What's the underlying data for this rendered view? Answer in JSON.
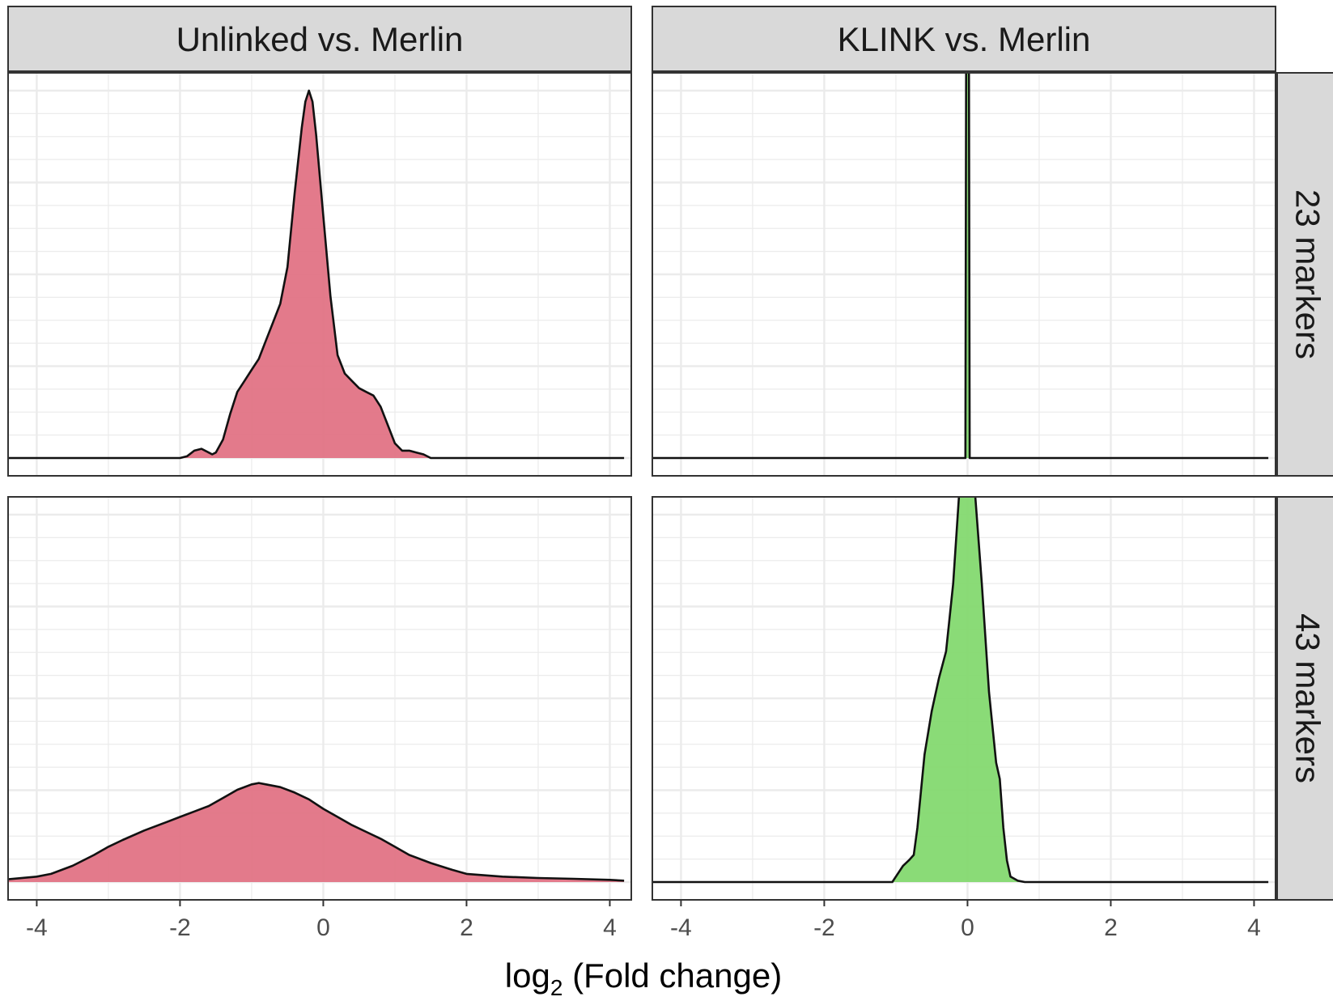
{
  "chart_data": {
    "type": "area",
    "subtype": "density",
    "facet_columns": [
      "Unlinked vs. Merlin",
      "KLINK vs. Merlin"
    ],
    "facet_rows": [
      "23 markers",
      "43 markers"
    ],
    "xlabel": "log2 (Fold change)",
    "xlabel_base": "log",
    "xlabel_sub": "2",
    "xlabel_rest": " (Fold change)",
    "xlim": [
      -4.4,
      4.3
    ],
    "x_ticks": [
      -4,
      -2,
      0,
      2,
      4
    ],
    "x_tick_labels": [
      "-4",
      "-2",
      "0",
      "2",
      "4"
    ],
    "y_labels_shown": false,
    "grid": true,
    "colors": {
      "Unlinked vs. Merlin": "#e27385",
      "KLINK vs. Merlin": "#84d970",
      "strip_bg": "#d9d9d9",
      "grid": "#ebebeb",
      "frame": "#333333"
    },
    "panels": [
      {
        "column": "Unlinked vs. Merlin",
        "row": "23 markers",
        "color": "#e27385",
        "x": [
          -4.4,
          -2.0,
          -1.9,
          -1.8,
          -1.7,
          -1.6,
          -1.55,
          -1.5,
          -1.4,
          -1.3,
          -1.2,
          -1.1,
          -1.0,
          -0.9,
          -0.8,
          -0.7,
          -0.6,
          -0.5,
          -0.4,
          -0.3,
          -0.25,
          -0.2,
          -0.15,
          -0.1,
          0.0,
          0.1,
          0.2,
          0.3,
          0.4,
          0.5,
          0.6,
          0.7,
          0.8,
          0.9,
          1.0,
          1.1,
          1.2,
          1.3,
          1.4,
          1.5,
          1.6,
          1.7,
          1.8,
          2.0,
          4.2
        ],
        "y": [
          0,
          0,
          0.005,
          0.02,
          0.025,
          0.015,
          0.01,
          0.015,
          0.05,
          0.12,
          0.18,
          0.21,
          0.24,
          0.27,
          0.32,
          0.37,
          0.42,
          0.52,
          0.72,
          0.9,
          0.97,
          1.0,
          0.97,
          0.88,
          0.66,
          0.44,
          0.28,
          0.23,
          0.21,
          0.19,
          0.18,
          0.17,
          0.14,
          0.09,
          0.04,
          0.02,
          0.02,
          0.015,
          0.01,
          0.0,
          0.0,
          0.0,
          0.0,
          0.0,
          0.0
        ]
      },
      {
        "column": "KLINK vs. Merlin",
        "row": "23 markers",
        "color": "#84d970",
        "x": [
          -4.4,
          -0.03,
          -0.02,
          0.02,
          0.03,
          4.2
        ],
        "y": [
          0,
          0,
          1.05,
          1.05,
          0,
          0
        ]
      },
      {
        "column": "Unlinked vs. Merlin",
        "row": "43 markers",
        "color": "#e27385",
        "x": [
          -4.4,
          -4.0,
          -3.8,
          -3.5,
          -3.2,
          -3.0,
          -2.8,
          -2.5,
          -2.2,
          -2.0,
          -1.8,
          -1.6,
          -1.4,
          -1.2,
          -1.0,
          -0.9,
          -0.8,
          -0.6,
          -0.4,
          -0.2,
          0.0,
          0.2,
          0.4,
          0.6,
          0.8,
          1.0,
          1.2,
          1.5,
          1.8,
          2.0,
          2.5,
          3.0,
          3.5,
          4.0,
          4.2
        ],
        "y": [
          0.01,
          0.02,
          0.03,
          0.06,
          0.1,
          0.13,
          0.155,
          0.19,
          0.22,
          0.24,
          0.26,
          0.28,
          0.31,
          0.34,
          0.36,
          0.365,
          0.36,
          0.35,
          0.33,
          0.305,
          0.27,
          0.24,
          0.21,
          0.185,
          0.16,
          0.13,
          0.1,
          0.07,
          0.045,
          0.03,
          0.02,
          0.015,
          0.012,
          0.008,
          0.005
        ]
      },
      {
        "column": "KLINK vs. Merlin",
        "row": "43 markers",
        "color": "#84d970",
        "x": [
          -4.4,
          -1.05,
          -1.0,
          -0.9,
          -0.82,
          -0.75,
          -0.7,
          -0.6,
          -0.5,
          -0.4,
          -0.3,
          -0.2,
          -0.1,
          0.0,
          0.1,
          0.2,
          0.3,
          0.4,
          0.45,
          0.5,
          0.55,
          0.6,
          0.7,
          0.8,
          4.2
        ],
        "y": [
          0,
          0,
          0.02,
          0.06,
          0.08,
          0.1,
          0.2,
          0.47,
          0.63,
          0.75,
          0.85,
          1.1,
          1.5,
          1.6,
          1.45,
          1.1,
          0.7,
          0.44,
          0.38,
          0.2,
          0.08,
          0.02,
          0.005,
          0.0,
          0.0
        ]
      }
    ]
  }
}
